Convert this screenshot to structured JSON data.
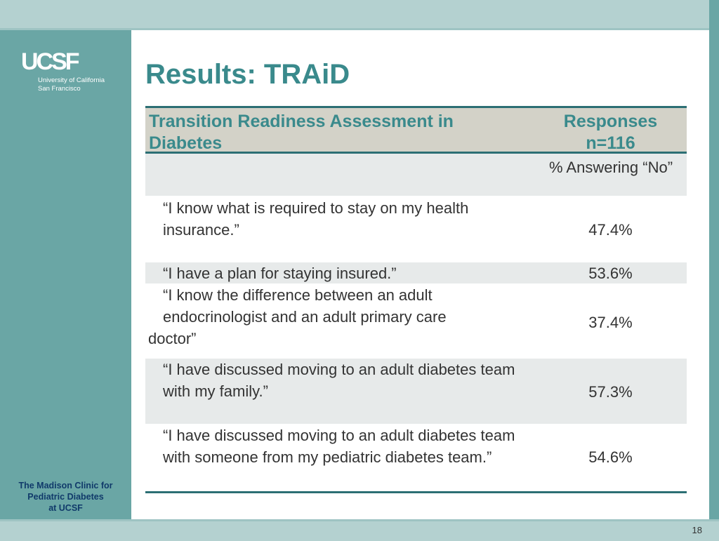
{
  "logo": {
    "mark": "UCSF",
    "line1": "University of California",
    "line2": "San Francisco"
  },
  "sidebar": {
    "clinic_line1": "The Madison Clinic for",
    "clinic_line2": "Pediatric Diabetes",
    "clinic_line3": "at UCSF"
  },
  "slide": {
    "title": "Results: TRAiD",
    "page_number": "18"
  },
  "table": {
    "header_left": "Transition Readiness Assessment in Diabetes",
    "header_right_line1": "Responses",
    "header_right_line2": "n=116",
    "subheader_right": "% Answering “No”",
    "rows": [
      {
        "question": "“I know what is required to stay on my health insurance.”",
        "value": "47.4%"
      },
      {
        "question": "“I have a plan for staying insured.”",
        "value": "53.6%"
      },
      {
        "question_line1": "“I know the difference between an adult",
        "question_line2": "endocrinologist and an adult primary care",
        "question_line3": "doctor”",
        "value": "37.4%"
      },
      {
        "question": "“I have discussed moving to an adult diabetes team with my family.”",
        "value": "57.3%"
      },
      {
        "question": "“I have discussed moving to an adult diabetes team with someone from my pediatric diabetes team.”",
        "value": "54.6%"
      }
    ]
  },
  "colors": {
    "teal_background": "#6aa6a5",
    "light_teal_bar": "#b4d1d0",
    "title_teal": "#3a8a8c",
    "header_fill": "#d3d2c8",
    "row_shade": "#e7eaea",
    "rule": "#2c6f74",
    "clinic_text": "#103a6a"
  }
}
